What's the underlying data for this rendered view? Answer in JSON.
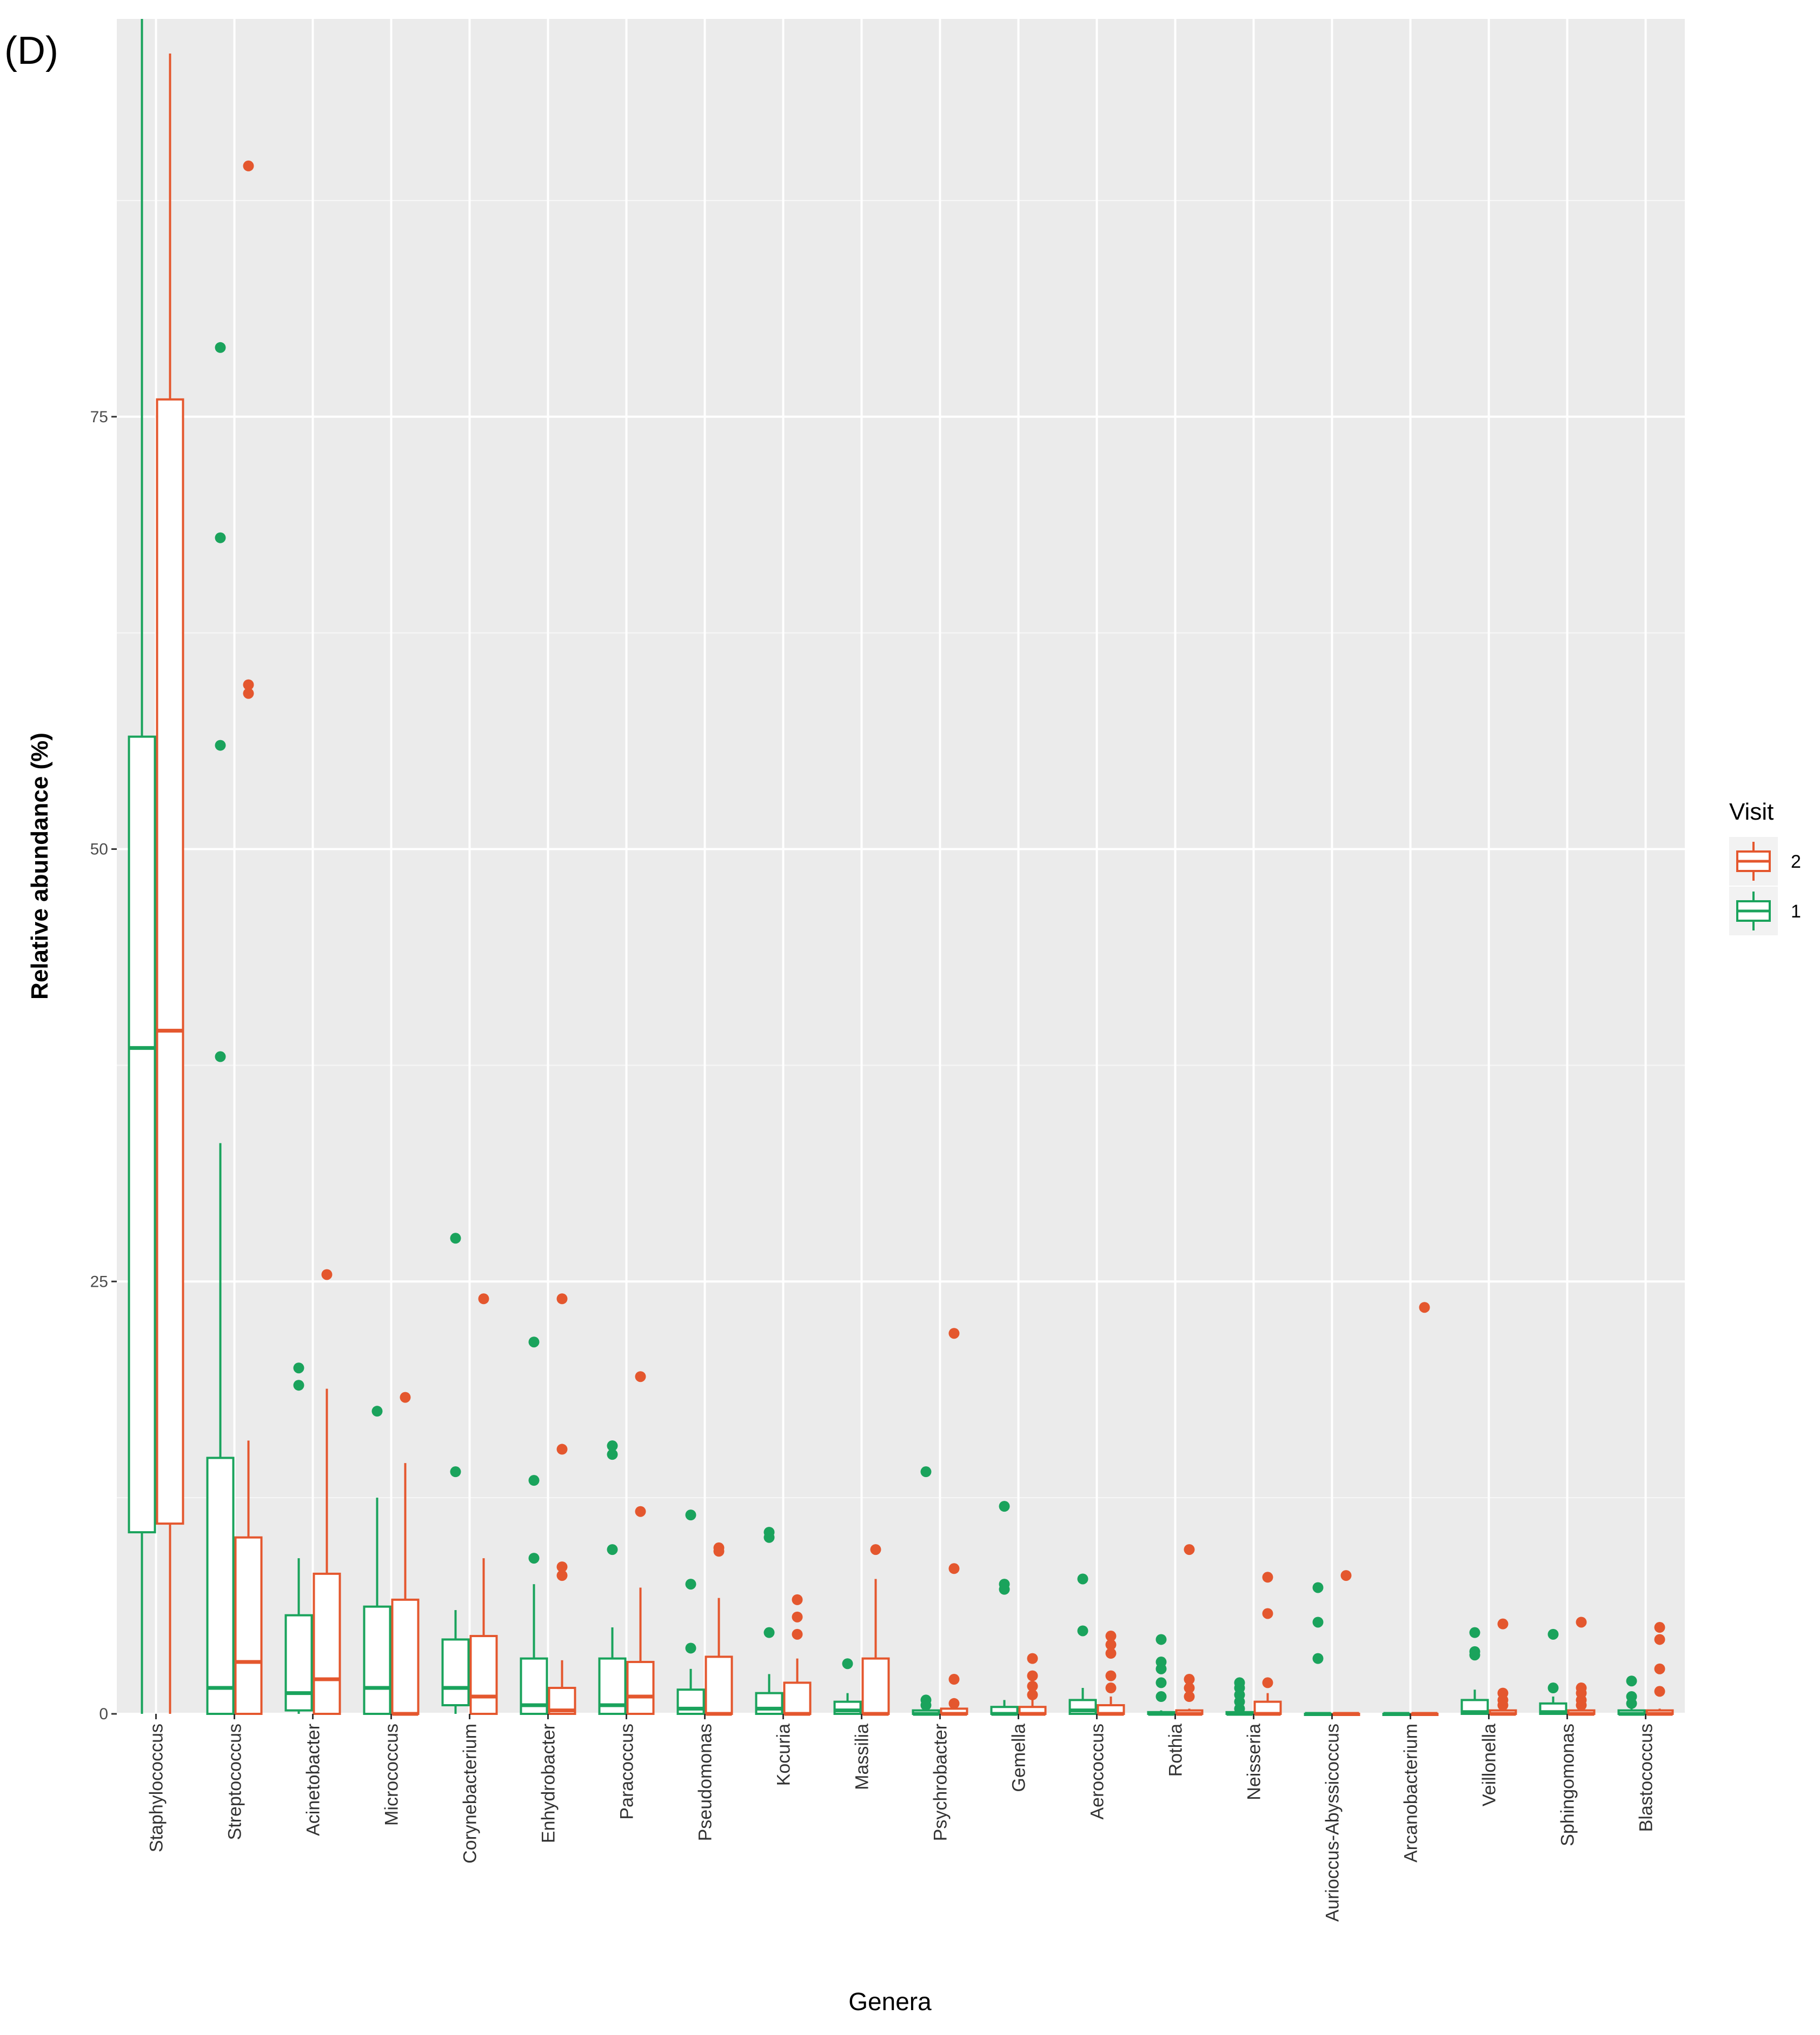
{
  "chart_data": {
    "type": "boxplot",
    "panel_label": "(D)",
    "xlabel": "Genera",
    "ylabel": "Relative abundance (%)",
    "ylim": [
      0,
      98
    ],
    "yticks": [
      0,
      25,
      50,
      75
    ],
    "legend": {
      "title": "Visit",
      "position": "right",
      "entries": [
        {
          "label": "2",
          "color": "#e4572e"
        },
        {
          "label": "1",
          "color": "#1aa35c"
        }
      ]
    },
    "colors": {
      "visit1": "#1aa35c",
      "visit2": "#e4572e",
      "panel_bg": "#ebebeb",
      "grid": "#ffffff"
    },
    "categories": [
      "Staphylococcus",
      "Streptococcus",
      "Acinetobacter",
      "Micrococcus",
      "Corynebacterium",
      "Enhydrobacter",
      "Paracoccus",
      "Pseudomonas",
      "Kocuria",
      "Massilia",
      "Psychrobacter",
      "Gemella",
      "Aerococcus",
      "Rothia",
      "Neisseria",
      "Aurioccus-Abyssicoccus",
      "Arcanobacterium",
      "Veillonella",
      "Sphingomonas",
      "Blastococcus"
    ],
    "series": [
      {
        "name": "1",
        "boxes": [
          {
            "whisker_low": 0,
            "q1": 10.5,
            "median": 38.5,
            "q3": 56.5,
            "whisker_high": 98,
            "outliers": []
          },
          {
            "whisker_low": 0,
            "q1": 0,
            "median": 1.5,
            "q3": 14.8,
            "whisker_high": 33,
            "outliers": [
              38,
              56,
              68,
              79
            ]
          },
          {
            "whisker_low": 0,
            "q1": 0.2,
            "median": 1.2,
            "q3": 5.7,
            "whisker_high": 9,
            "outliers": [
              19,
              20
            ]
          },
          {
            "whisker_low": 0,
            "q1": 0,
            "median": 1.5,
            "q3": 6.2,
            "whisker_high": 12.5,
            "outliers": [
              17.5
            ]
          },
          {
            "whisker_low": 0,
            "q1": 0.5,
            "median": 1.5,
            "q3": 4.3,
            "whisker_high": 6,
            "outliers": [
              14,
              27.5
            ]
          },
          {
            "whisker_low": 0,
            "q1": 0,
            "median": 0.5,
            "q3": 3.2,
            "whisker_high": 7.5,
            "outliers": [
              9,
              13.5,
              21.5
            ]
          },
          {
            "whisker_low": 0,
            "q1": 0,
            "median": 0.5,
            "q3": 3.2,
            "whisker_high": 5,
            "outliers": [
              9.5,
              15,
              15.5
            ]
          },
          {
            "whisker_low": 0,
            "q1": 0,
            "median": 0.3,
            "q3": 1.4,
            "whisker_high": 2.6,
            "outliers": [
              3.8,
              7.5,
              11.5
            ]
          },
          {
            "whisker_low": 0,
            "q1": 0,
            "median": 0.3,
            "q3": 1.2,
            "whisker_high": 2.3,
            "outliers": [
              4.7,
              10.2,
              10.5
            ]
          },
          {
            "whisker_low": 0,
            "q1": 0,
            "median": 0.2,
            "q3": 0.7,
            "whisker_high": 1.2,
            "outliers": [
              2.9
            ]
          },
          {
            "whisker_low": 0,
            "q1": 0,
            "median": 0,
            "q3": 0.2,
            "whisker_high": 0.3,
            "outliers": [
              0.5,
              0.8,
              14
            ]
          },
          {
            "whisker_low": 0,
            "q1": 0,
            "median": 0,
            "q3": 0.4,
            "whisker_high": 0.8,
            "outliers": [
              7.2,
              7.5,
              12
            ]
          },
          {
            "whisker_low": 0,
            "q1": 0,
            "median": 0.2,
            "q3": 0.8,
            "whisker_high": 1.5,
            "outliers": [
              4.8,
              7.8
            ]
          },
          {
            "whisker_low": 0,
            "q1": 0,
            "median": 0,
            "q3": 0.1,
            "whisker_high": 0.2,
            "outliers": [
              1,
              1.8,
              2.6,
              3,
              4.3
            ]
          },
          {
            "whisker_low": 0,
            "q1": 0,
            "median": 0,
            "q3": 0.1,
            "whisker_high": 0.2,
            "outliers": [
              0.3,
              0.7,
              1.1,
              1.5,
              1.8
            ]
          },
          {
            "whisker_low": 0,
            "q1": 0,
            "median": 0,
            "q3": 0,
            "whisker_high": 0,
            "outliers": [
              3.2,
              5.3,
              7.3
            ]
          },
          {
            "whisker_low": 0,
            "q1": 0,
            "median": 0,
            "q3": 0,
            "whisker_high": 0,
            "outliers": []
          },
          {
            "whisker_low": 0,
            "q1": 0,
            "median": 0.1,
            "q3": 0.8,
            "whisker_high": 1.4,
            "outliers": [
              3.4,
              3.6,
              4.7
            ]
          },
          {
            "whisker_low": 0,
            "q1": 0,
            "median": 0.1,
            "q3": 0.6,
            "whisker_high": 1,
            "outliers": [
              1.5,
              4.6
            ]
          },
          {
            "whisker_low": 0,
            "q1": 0,
            "median": 0,
            "q3": 0.2,
            "whisker_high": 0.3,
            "outliers": [
              0.6,
              1,
              1.9
            ]
          }
        ]
      },
      {
        "name": "2",
        "boxes": [
          {
            "whisker_low": 0,
            "q1": 11,
            "median": 39.5,
            "q3": 76,
            "whisker_high": 96,
            "outliers": []
          },
          {
            "whisker_low": 0,
            "q1": 0,
            "median": 3,
            "q3": 10.2,
            "whisker_high": 15.8,
            "outliers": [
              59,
              59.5,
              89.5
            ]
          },
          {
            "whisker_low": 0,
            "q1": 0,
            "median": 2,
            "q3": 8.1,
            "whisker_high": 18.8,
            "outliers": [
              25.4
            ]
          },
          {
            "whisker_low": 0,
            "q1": 0,
            "median": 0,
            "q3": 6.6,
            "whisker_high": 14.5,
            "outliers": [
              18.3
            ]
          },
          {
            "whisker_low": 0,
            "q1": 0,
            "median": 1,
            "q3": 4.5,
            "whisker_high": 9,
            "outliers": [
              24
            ]
          },
          {
            "whisker_low": 0,
            "q1": 0,
            "median": 0.2,
            "q3": 1.5,
            "whisker_high": 3.1,
            "outliers": [
              8,
              8.5,
              15.3,
              24
            ]
          },
          {
            "whisker_low": 0,
            "q1": 0,
            "median": 1,
            "q3": 3,
            "whisker_high": 7.3,
            "outliers": [
              11.7,
              19.5
            ]
          },
          {
            "whisker_low": 0,
            "q1": 0,
            "median": 0,
            "q3": 3.3,
            "whisker_high": 6.7,
            "outliers": [
              9.4,
              9.6
            ]
          },
          {
            "whisker_low": 0,
            "q1": 0,
            "median": 0,
            "q3": 1.8,
            "whisker_high": 3.2,
            "outliers": [
              4.6,
              5.6,
              6.6
            ]
          },
          {
            "whisker_low": 0,
            "q1": 0,
            "median": 0,
            "q3": 3.2,
            "whisker_high": 7.8,
            "outliers": [
              9.5
            ]
          },
          {
            "whisker_low": 0,
            "q1": 0,
            "median": 0,
            "q3": 0.3,
            "whisker_high": 0.5,
            "outliers": [
              0.6,
              2,
              8.4,
              22
            ]
          },
          {
            "whisker_low": 0,
            "q1": 0,
            "median": 0,
            "q3": 0.4,
            "whisker_high": 0.8,
            "outliers": [
              1.1,
              1.6,
              2.2,
              3.2
            ]
          },
          {
            "whisker_low": 0,
            "q1": 0,
            "median": 0,
            "q3": 0.5,
            "whisker_high": 1,
            "outliers": [
              1.5,
              2.2,
              3.5,
              4,
              4.5
            ]
          },
          {
            "whisker_low": 0,
            "q1": 0,
            "median": 0,
            "q3": 0.2,
            "whisker_high": 0.3,
            "outliers": [
              1,
              1.5,
              2,
              9.5
            ]
          },
          {
            "whisker_low": 0,
            "q1": 0,
            "median": 0,
            "q3": 0.7,
            "whisker_high": 1.2,
            "outliers": [
              1.8,
              5.8,
              7.9
            ]
          },
          {
            "whisker_low": 0,
            "q1": 0,
            "median": 0,
            "q3": 0,
            "whisker_high": 0,
            "outliers": [
              8
            ]
          },
          {
            "whisker_low": 0,
            "q1": 0,
            "median": 0,
            "q3": 0,
            "whisker_high": 0,
            "outliers": [
              23.5
            ]
          },
          {
            "whisker_low": 0,
            "q1": 0,
            "median": 0,
            "q3": 0.2,
            "whisker_high": 0.3,
            "outliers": [
              0.5,
              0.8,
              1.2,
              5.2
            ]
          },
          {
            "whisker_low": 0,
            "q1": 0,
            "median": 0,
            "q3": 0.2,
            "whisker_high": 0.3,
            "outliers": [
              0.5,
              0.8,
              1.2,
              1.5,
              5.3
            ]
          },
          {
            "whisker_low": 0,
            "q1": 0,
            "median": 0,
            "q3": 0.2,
            "whisker_high": 0.3,
            "outliers": [
              1.3,
              2.6,
              4.3,
              5
            ]
          }
        ]
      }
    ]
  }
}
